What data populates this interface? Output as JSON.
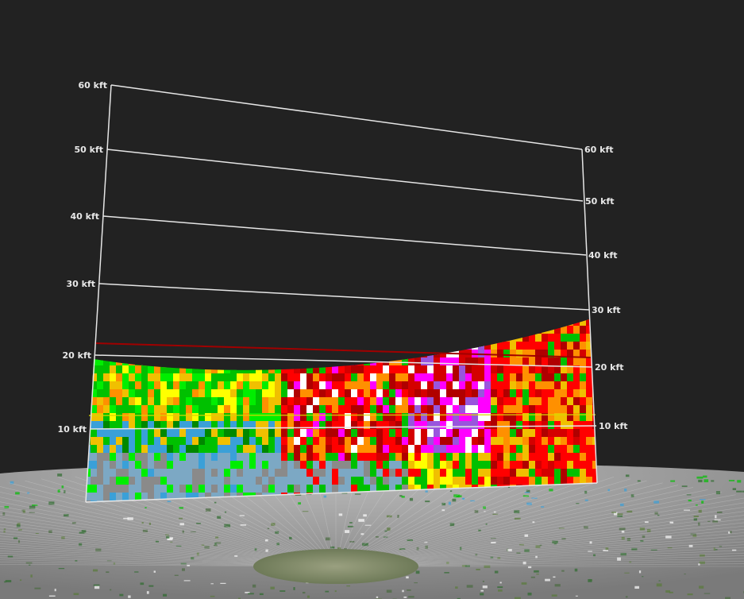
{
  "view": {
    "name": "radar-cross-section-3d",
    "background_color": "#222222",
    "frame_color": "#e6e6e6",
    "freezing_level_color": "#a00000",
    "temperature_level_color": "#d8d800"
  },
  "altitude_labels": {
    "left": [
      "60 kft",
      "50 kft",
      "40 kft",
      "30 kft",
      "20 kft",
      "10 kft"
    ],
    "right": [
      "60 kft",
      "50 kft",
      "40 kft",
      "30 kft",
      "20 kft",
      "10 kft"
    ]
  },
  "reflectivity_palette": [
    "#7ca8c4",
    "#3aa0d8",
    "#00ee00",
    "#00c000",
    "#008800",
    "#ffff00",
    "#f0c000",
    "#ff9000",
    "#ff0000",
    "#d40000",
    "#b00000",
    "#ff00ff",
    "#9955dd",
    "#ffffff",
    "#8a8a8a"
  ],
  "icons": [
    "ground-map-icon",
    "radar-site-icon"
  ]
}
